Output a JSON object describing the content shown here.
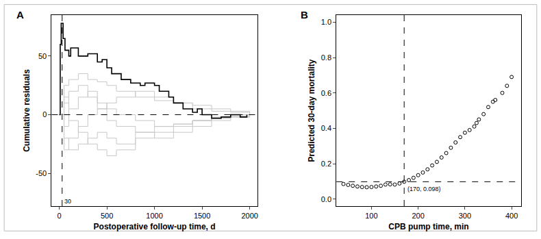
{
  "chart_data": [
    {
      "type": "line",
      "panel": "A",
      "x_label": "Postoperative follow-up time, d",
      "y_label": "Cumulative residuals",
      "xlim": [
        -80,
        2080
      ],
      "xticks": [
        0,
        500,
        1000,
        1500,
        2000
      ],
      "ylim": [
        -78,
        85
      ],
      "yticks": [
        -50,
        0,
        50
      ],
      "hline": {
        "y": 0,
        "line_style": "dashed"
      },
      "vline": {
        "x": 30,
        "label": "30",
        "line_style": "dashed"
      },
      "series": [
        {
          "type": "step",
          "color": "#c8c8c8",
          "x": [
            0,
            50,
            100,
            200,
            300,
            400,
            500,
            600,
            800,
            1000,
            1200,
            1400,
            1600,
            1800,
            2000
          ],
          "values": [
            0,
            -20,
            -30,
            -25,
            -20,
            -15,
            -20,
            -25,
            -15,
            -10,
            -8,
            -5,
            -3,
            -2,
            0
          ]
        },
        {
          "type": "step",
          "color": "#c8c8c8",
          "x": [
            0,
            50,
            100,
            200,
            300,
            400,
            500,
            600,
            800,
            1000,
            1200,
            1400,
            1600,
            1800,
            2000
          ],
          "values": [
            0,
            25,
            30,
            35,
            30,
            28,
            25,
            20,
            15,
            12,
            10,
            8,
            5,
            3,
            0
          ]
        },
        {
          "type": "step",
          "color": "#c8c8c8",
          "x": [
            0,
            50,
            100,
            200,
            300,
            400,
            500,
            600,
            800,
            1000,
            1200,
            1400,
            1600,
            1800,
            2000
          ],
          "values": [
            0,
            -10,
            5,
            15,
            20,
            10,
            5,
            0,
            -5,
            -10,
            -8,
            -5,
            -3,
            -1,
            0
          ]
        },
        {
          "type": "step",
          "color": "#c8c8c8",
          "x": [
            0,
            50,
            100,
            200,
            300,
            400,
            500,
            600,
            800,
            1000,
            1200,
            1400,
            1600,
            1800,
            2000
          ],
          "values": [
            0,
            15,
            -5,
            -15,
            -25,
            -30,
            -35,
            -30,
            -20,
            -15,
            -10,
            -5,
            -2,
            0,
            0
          ]
        },
        {
          "type": "step",
          "color": "#c8c8c8",
          "x": [
            0,
            50,
            100,
            200,
            300,
            400,
            500,
            600,
            800,
            1000,
            1200,
            1400,
            1600,
            1800,
            2000
          ],
          "values": [
            0,
            -30,
            -20,
            -10,
            0,
            5,
            10,
            15,
            20,
            15,
            10,
            5,
            3,
            2,
            0
          ]
        },
        {
          "type": "step",
          "color": "#c8c8c8",
          "x": [
            0,
            50,
            100,
            200,
            300,
            400,
            500,
            600,
            800,
            1000,
            1200,
            1400,
            1600,
            1800,
            2000
          ],
          "values": [
            0,
            10,
            20,
            25,
            15,
            5,
            -5,
            -10,
            -15,
            -20,
            -15,
            -10,
            -5,
            -2,
            0
          ]
        },
        {
          "type": "step",
          "color": "#000000",
          "x": [
            0,
            10,
            20,
            40,
            60,
            100,
            120,
            200,
            300,
            400,
            450,
            500,
            550,
            650,
            750,
            850,
            900,
            1000,
            1050,
            1150,
            1200,
            1300,
            1400,
            1450,
            1500,
            1600,
            1700,
            1800,
            1900,
            1970
          ],
          "values": [
            0,
            60,
            78,
            65,
            55,
            50,
            57,
            50,
            52,
            45,
            47,
            40,
            35,
            30,
            27,
            25,
            27,
            25,
            20,
            15,
            10,
            5,
            2,
            5,
            0,
            -3,
            -2,
            0,
            -2,
            0
          ]
        }
      ]
    },
    {
      "type": "scatter",
      "panel": "B",
      "x_label": "CPB pump time, min",
      "y_label": "Predicted 30-day mortality",
      "xlim": [
        25,
        420
      ],
      "xticks": [
        100,
        200,
        300,
        400
      ],
      "ylim": [
        -0.04,
        1.04
      ],
      "yticks": [
        {
          "value": 0,
          "label": "0.0"
        },
        0.2,
        0.4,
        0.6,
        0.8,
        {
          "value": 1,
          "label": "1.0"
        }
      ],
      "hline": {
        "y": 0.098,
        "line_style": "dashed"
      },
      "vline": {
        "x": 170,
        "line_style": "dashed"
      },
      "annotation": {
        "text": "(170, 0.098)",
        "x": 170,
        "y": 0.098
      },
      "series": [
        {
          "type": "scatter",
          "marker": "open circle",
          "color": "#000000",
          "x": [
            40,
            50,
            60,
            70,
            80,
            90,
            100,
            110,
            120,
            130,
            140,
            150,
            160,
            170,
            180,
            190,
            200,
            210,
            220,
            230,
            240,
            250,
            260,
            270,
            280,
            290,
            300,
            310,
            320,
            325,
            330,
            340,
            350,
            360,
            365,
            380,
            390,
            400
          ],
          "values": [
            0.085,
            0.08,
            0.075,
            0.071,
            0.068,
            0.067,
            0.068,
            0.071,
            0.075,
            0.082,
            0.083,
            0.082,
            0.088,
            0.098,
            0.107,
            0.12,
            0.135,
            0.15,
            0.168,
            0.19,
            0.21,
            0.235,
            0.26,
            0.29,
            0.32,
            0.35,
            0.375,
            0.39,
            0.41,
            0.43,
            0.45,
            0.48,
            0.52,
            0.55,
            0.56,
            0.6,
            0.64,
            0.69
          ]
        }
      ]
    }
  ]
}
